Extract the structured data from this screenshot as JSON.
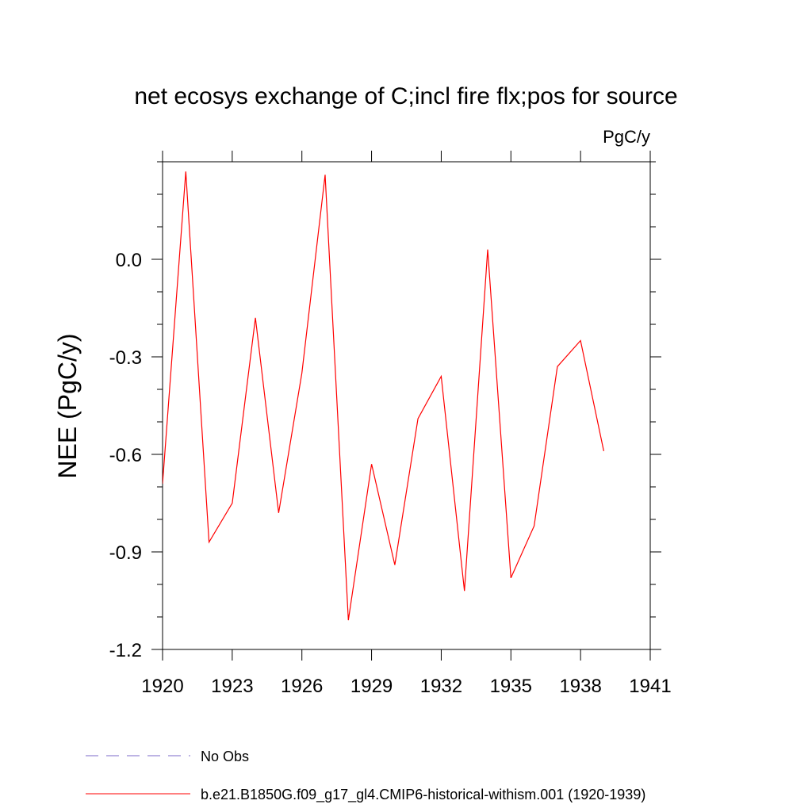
{
  "chart_data": {
    "type": "line",
    "title": "net ecosys exchange of C;incl fire flx;pos for source",
    "units": "PgC/y",
    "ylabel": "NEE  (PgC/y)",
    "xlabel": "",
    "xlim": [
      1920,
      1941
    ],
    "ylim": [
      -1.2,
      0.3
    ],
    "xticks": [
      1920,
      1923,
      1926,
      1929,
      1932,
      1935,
      1938,
      1941
    ],
    "xtick_labels": [
      "1920",
      "1923",
      "1926",
      "1929",
      "1932",
      "1935",
      "1938",
      "1941"
    ],
    "yticks": [
      -1.2,
      -0.9,
      -0.6,
      -0.3,
      0.0
    ],
    "ytick_labels": [
      "-1.2",
      "-0.9",
      "-0.6",
      "-0.3",
      "0.0"
    ],
    "grid": false,
    "legend_position": "bottom",
    "series": [
      {
        "name": "No Obs",
        "color": "#7b68c8",
        "style": "dashed",
        "x": [],
        "y": []
      },
      {
        "name": "b.e21.B1850G.f09_g17_gl4.CMIP6-historical-withism.001 (1920-1939)",
        "color": "#ff0000",
        "style": "solid",
        "x": [
          1920,
          1921,
          1922,
          1923,
          1924,
          1925,
          1926,
          1927,
          1928,
          1929,
          1930,
          1931,
          1932,
          1933,
          1934,
          1935,
          1936,
          1937,
          1938,
          1939
        ],
        "y": [
          -0.69,
          0.27,
          -0.87,
          -0.75,
          -0.18,
          -0.78,
          -0.35,
          0.26,
          -1.11,
          -0.63,
          -0.94,
          -0.49,
          -0.36,
          -1.02,
          0.03,
          -0.98,
          -0.82,
          -0.33,
          -0.25,
          -0.59
        ]
      }
    ]
  }
}
